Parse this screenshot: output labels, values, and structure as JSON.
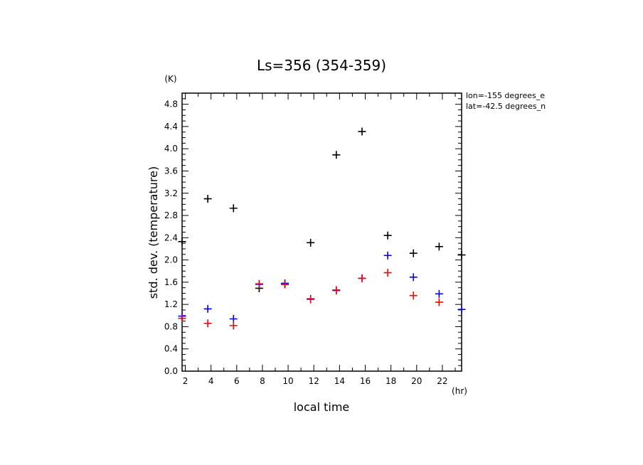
{
  "chart_data": {
    "type": "scatter",
    "title": "Ls=356 (354-359)",
    "xlabel": "local time",
    "ylabel": "std. dev. (temperature)",
    "x_unit": "(hr)",
    "y_unit": "(K)",
    "xlim": [
      1.75,
      23.5
    ],
    "ylim": [
      0.0,
      5.0
    ],
    "xticks": [
      "2",
      "4",
      "6",
      "8",
      "10",
      "12",
      "14",
      "16",
      "18",
      "20",
      "22"
    ],
    "yticks": [
      "0.0",
      "0.4",
      "0.8",
      "1.2",
      "1.6",
      "2.0",
      "2.4",
      "2.8",
      "3.2",
      "3.6",
      "4.0",
      "4.4",
      "4.8"
    ],
    "annotations": [
      "lon=-155 degrees_e",
      "lat=-42.5 degrees_n"
    ],
    "grid": false,
    "series": [
      {
        "color": "#000000",
        "x": [
          1.75,
          3.75,
          5.75,
          7.75,
          9.75,
          11.75,
          13.75,
          15.75,
          17.75,
          19.75,
          21.75,
          23.5
        ],
        "y": [
          2.33,
          3.1,
          2.93,
          1.49,
          1.56,
          2.31,
          3.89,
          4.31,
          2.44,
          2.12,
          2.24,
          2.09
        ]
      },
      {
        "color": "#0000ff",
        "x": [
          1.75,
          3.75,
          5.75,
          7.75,
          9.75,
          11.75,
          13.75,
          15.75,
          17.75,
          19.75,
          21.75,
          23.5
        ],
        "y": [
          0.99,
          1.12,
          0.94,
          1.56,
          1.58,
          1.3,
          1.45,
          1.67,
          2.08,
          1.69,
          1.39,
          1.11
        ]
      },
      {
        "color": "#ff0000",
        "x": [
          1.75,
          3.75,
          5.75,
          7.75,
          9.75,
          11.75,
          13.75,
          15.75,
          17.75,
          19.75,
          21.75
        ],
        "y": [
          0.95,
          0.86,
          0.82,
          1.57,
          1.56,
          1.29,
          1.46,
          1.67,
          1.77,
          1.36,
          1.24
        ]
      }
    ]
  }
}
